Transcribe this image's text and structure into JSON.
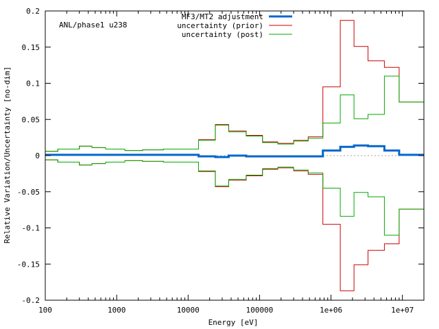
{
  "chart_data": {
    "type": "line",
    "step": true,
    "x_scale": "log",
    "xlim": [
      100,
      20000000
    ],
    "ylim": [
      -0.2,
      0.2
    ],
    "xlabel": "Energy [eV]",
    "ylabel": "Relative Variation/Uncertainty [no-dim]",
    "annotation": "ANL/phase1 u238",
    "legend_position": "top-center",
    "zero_line": true,
    "x_ticks": [
      {
        "value": 100,
        "label": "100"
      },
      {
        "value": 1000,
        "label": "1000"
      },
      {
        "value": 10000,
        "label": "10000"
      },
      {
        "value": 100000,
        "label": "100000"
      },
      {
        "value": 1000000,
        "label": "1e+06"
      },
      {
        "value": 10000000,
        "label": "1e+07"
      }
    ],
    "y_ticks": [
      {
        "value": 0.2,
        "label": "0.2"
      },
      {
        "value": 0.15,
        "label": "0.15"
      },
      {
        "value": 0.1,
        "label": "0.1"
      },
      {
        "value": 0.05,
        "label": "0.05"
      },
      {
        "value": 0,
        "label": "0"
      },
      {
        "value": -0.05,
        "label": "-0.05"
      },
      {
        "value": -0.1,
        "label": "-0.1"
      },
      {
        "value": -0.15,
        "label": "-0.15"
      },
      {
        "value": -0.2,
        "label": "-0.2"
      }
    ],
    "bin_edges": [
      100,
      150,
      300,
      450,
      700,
      1300,
      2300,
      4500,
      14000,
      24000,
      37000,
      65000,
      110000,
      180000,
      300000,
      480000,
      770000,
      1350000,
      2100000,
      3300000,
      5600000,
      9000000,
      20000000
    ],
    "series": [
      {
        "name": "MF3/MT2 adjustment",
        "color": "#0066cc",
        "width": 3,
        "symmetric": false,
        "values": [
          0.001,
          0.001,
          0.001,
          0.001,
          0.001,
          0.001,
          0.001,
          0.001,
          -0.001,
          -0.002,
          0.0,
          -0.001,
          -0.001,
          -0.001,
          -0.001,
          -0.001,
          0.007,
          0.012,
          0.014,
          0.013,
          0.007,
          0.001
        ]
      },
      {
        "name": "uncertainty (prior)",
        "color": "#cc0000",
        "width": 1,
        "symmetric": true,
        "values": [
          0.006,
          0.009,
          0.013,
          0.011,
          0.009,
          0.007,
          0.008,
          0.009,
          0.022,
          0.043,
          0.034,
          0.028,
          0.019,
          0.017,
          0.021,
          0.026,
          0.095,
          0.187,
          0.151,
          0.131,
          0.122,
          0.074
        ]
      },
      {
        "name": "uncertainty (post)",
        "color": "#00aa00",
        "width": 1,
        "symmetric": true,
        "values": [
          0.006,
          0.009,
          0.013,
          0.011,
          0.009,
          0.007,
          0.008,
          0.009,
          0.021,
          0.042,
          0.033,
          0.027,
          0.018,
          0.016,
          0.02,
          0.024,
          0.045,
          0.084,
          0.051,
          0.057,
          0.11,
          0.074
        ]
      }
    ]
  }
}
